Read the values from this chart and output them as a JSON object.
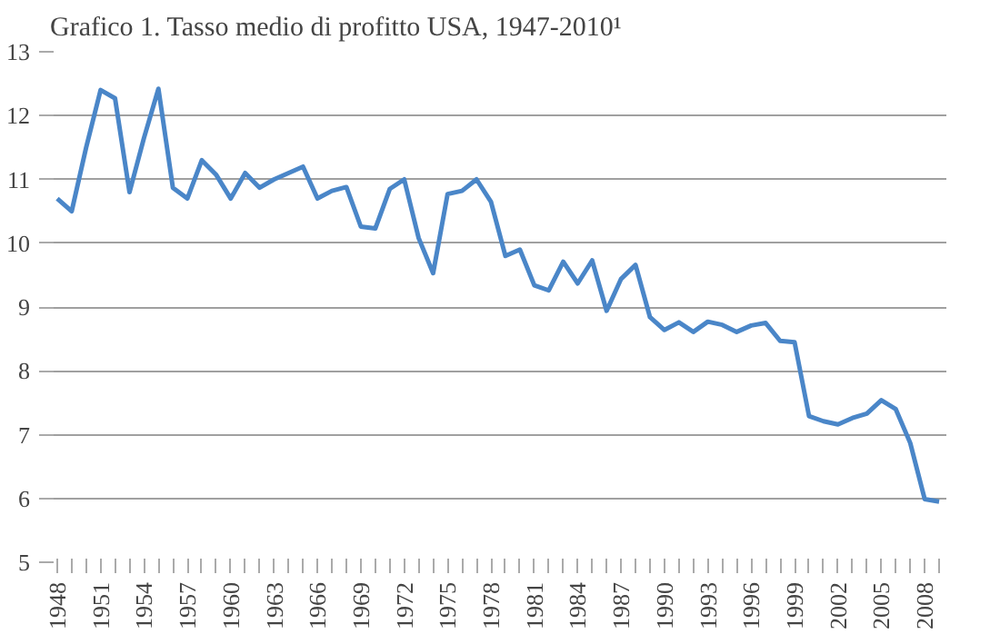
{
  "chart_data": {
    "type": "line",
    "title": "Grafico 1. Tasso medio di profitto USA, 1947-2010¹",
    "categories": [
      "1948",
      null,
      null,
      "1951",
      null,
      null,
      "1954",
      null,
      null,
      "1957",
      null,
      null,
      "1960",
      null,
      null,
      "1963",
      null,
      null,
      "1966",
      null,
      null,
      "1969",
      null,
      null,
      "1972",
      null,
      null,
      "1975",
      null,
      null,
      "1978",
      null,
      null,
      "1981",
      null,
      null,
      "1984",
      null,
      null,
      "1987",
      null,
      null,
      "1990",
      null,
      null,
      "1993",
      null,
      null,
      "1996",
      null,
      null,
      "1999",
      null,
      null,
      "2002",
      null,
      null,
      "2005",
      null,
      null,
      "2008",
      null
    ],
    "series": [
      {
        "color": "#4a86c8",
        "values": [
          10.7,
          10.5,
          11.5,
          12.4,
          12.27,
          10.8,
          11.65,
          12.42,
          10.87,
          10.7,
          11.3,
          11.07,
          10.7,
          11.1,
          10.87,
          11.0,
          11.1,
          11.2,
          10.7,
          10.82,
          10.88,
          10.26,
          10.23,
          10.85,
          11.0,
          10.08,
          9.53,
          10.77,
          10.82,
          11.0,
          10.65,
          9.8,
          9.9,
          9.34,
          9.26,
          9.71,
          9.37,
          9.73,
          8.94,
          9.44,
          9.66,
          8.84,
          8.64,
          8.76,
          8.61,
          8.77,
          8.72,
          8.61,
          8.71,
          8.75,
          8.47,
          8.45,
          7.29,
          7.21,
          7.16,
          7.26,
          7.33,
          7.54,
          7.4,
          6.87,
          5.99,
          5.95
        ]
      }
    ],
    "ylim": [
      5,
      13
    ],
    "yticks": [
      5,
      6,
      7,
      8,
      9,
      10,
      11,
      12,
      13
    ],
    "grid": "y",
    "marker": "none",
    "line_style": "solid"
  }
}
